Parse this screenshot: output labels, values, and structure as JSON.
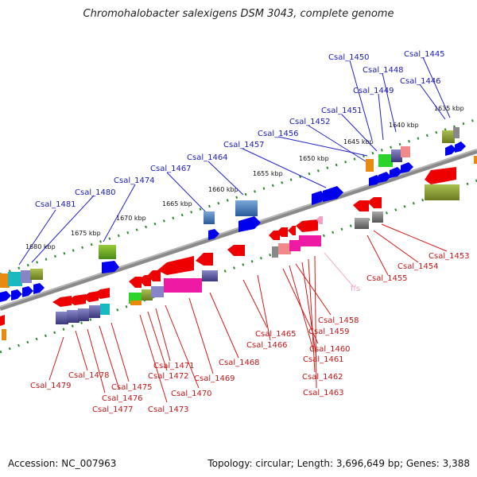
{
  "title": "Chromohalobacter salexigens DSM 3043, complete genome",
  "accession": "Accession: NC_007963",
  "topology": "Topology: circular; Length: 3,696,649 bp; Genes: 3,388",
  "kbp_ticks": [
    "1680 kbp",
    "1675 kbp",
    "1670 kbp",
    "1665 kbp",
    "1660 kbp",
    "1655 kbp",
    "1650 kbp",
    "1645 kbp",
    "1640 kbp",
    "1635 kbp"
  ],
  "top_labels": [
    "Csal_1481",
    "Csal_1480",
    "Csal_1474",
    "Csal_1467",
    "Csal_1464",
    "Csal_1457",
    "Csal_1456",
    "Csal_1452",
    "Csal_1451",
    "Csal_1449",
    "Csal_1448",
    "Csal_1450",
    "Csal_1446",
    "Csal_1445"
  ],
  "bottom_labels": [
    "Csal_1479",
    "Csal_1478",
    "Csal_1477",
    "Csal_1476",
    "Csal_1475",
    "Csal_1473",
    "Csal_1472",
    "Csal_1471",
    "Csal_1470",
    "Csal_1469",
    "Csal_1468",
    "Csal_1466",
    "Csal_1465",
    "Csal_1459",
    "Csal_1458",
    "Csal_1460",
    "Csal_1461",
    "Csal_1462",
    "Csal_1463",
    "Csal_1455",
    "Csal_1454",
    "Csal_1453"
  ],
  "rna_label": "ffs",
  "colors": {
    "forward_gene": "#0000ee",
    "reverse_gene": "#ee0000",
    "backbone": "#888888",
    "tick": "#2a8a2a"
  }
}
